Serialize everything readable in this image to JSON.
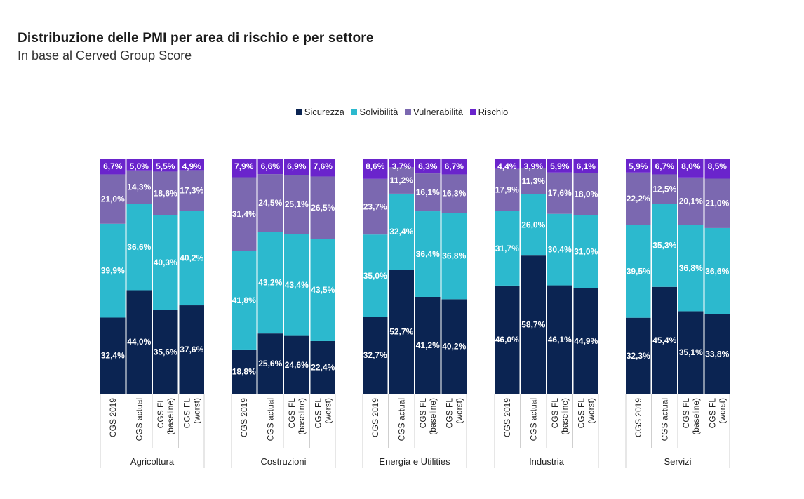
{
  "chart_data": {
    "type": "bar",
    "stacked": true,
    "title": "Distribuzione delle PMI per area di rischio e per settore",
    "subtitle": "In base al Cerved Group Score",
    "legend_position": "top-center",
    "ylim": [
      0,
      100
    ],
    "categories": [
      "CGS 2019",
      "CGS actual",
      "CGS FL (baseline)",
      "CGS FL (worst)"
    ],
    "category_lines": [
      [
        "CGS 2019"
      ],
      [
        "CGS actual"
      ],
      [
        "CGS FL",
        "(baseline)"
      ],
      [
        "CGS FL",
        "(worst)"
      ]
    ],
    "groups": [
      "Agricoltura",
      "Costruzioni",
      "Energia e Utilities",
      "Industria",
      "Servizi"
    ],
    "series": [
      {
        "name": "Sicurezza",
        "color": "#0b2452",
        "values": [
          [
            32.4,
            44.0,
            35.6,
            37.6
          ],
          [
            18.8,
            25.6,
            24.6,
            22.4
          ],
          [
            32.7,
            52.7,
            41.2,
            40.2
          ],
          [
            46.0,
            58.7,
            46.1,
            44.9
          ],
          [
            32.3,
            45.4,
            35.1,
            33.8
          ]
        ],
        "labels": [
          [
            "32,4%",
            "44,0%",
            "35,6%",
            "37,6%"
          ],
          [
            "18,8%",
            "25,6%",
            "24,6%",
            "22,4%"
          ],
          [
            "32,7%",
            "52,7%",
            "41,2%",
            "40,2%"
          ],
          [
            "46,0%",
            "58,7%",
            "46,1%",
            "44,9%"
          ],
          [
            "32,3%",
            "45,4%",
            "35,1%",
            "33,8%"
          ]
        ]
      },
      {
        "name": "Solvibilità",
        "color": "#2cb9ce",
        "values": [
          [
            39.9,
            36.6,
            40.3,
            40.2
          ],
          [
            41.8,
            43.2,
            43.4,
            43.5
          ],
          [
            35.0,
            32.4,
            36.4,
            36.8
          ],
          [
            31.7,
            26.0,
            30.4,
            31.0
          ],
          [
            39.5,
            35.3,
            36.8,
            36.6
          ]
        ],
        "labels": [
          [
            "39,9%",
            "36,6%",
            "40,3%",
            "40,2%"
          ],
          [
            "41,8%",
            "43,2%",
            "43,4%",
            "43,5%"
          ],
          [
            "35,0%",
            "32,4%",
            "36,4%",
            "36,8%"
          ],
          [
            "31,7%",
            "26,0%",
            "30,4%",
            "31,0%"
          ],
          [
            "39,5%",
            "35,3%",
            "36,8%",
            "36,6%"
          ]
        ]
      },
      {
        "name": "Vulnerabilità",
        "color": "#7b68b0",
        "values": [
          [
            21.0,
            14.3,
            18.6,
            17.3
          ],
          [
            31.4,
            24.5,
            25.1,
            26.5
          ],
          [
            23.7,
            11.2,
            16.1,
            16.3
          ],
          [
            17.9,
            11.3,
            17.6,
            18.0
          ],
          [
            22.2,
            12.5,
            20.1,
            21.0
          ]
        ],
        "labels": [
          [
            "21,0%",
            "14,3%",
            "18,6%",
            "17,3%"
          ],
          [
            "31,4%",
            "24,5%",
            "25,1%",
            "26,5%"
          ],
          [
            "23,7%",
            "11,2%",
            "16,1%",
            "16,3%"
          ],
          [
            "17,9%",
            "11,3%",
            "17,6%",
            "18,0%"
          ],
          [
            "22,2%",
            "12,5%",
            "20,1%",
            "21,0%"
          ]
        ]
      },
      {
        "name": "Rischio",
        "color": "#6a24cc",
        "values": [
          [
            6.7,
            5.0,
            5.5,
            4.9
          ],
          [
            7.9,
            6.6,
            6.9,
            7.6
          ],
          [
            8.6,
            3.7,
            6.3,
            6.7
          ],
          [
            4.4,
            3.9,
            5.9,
            6.1
          ],
          [
            5.9,
            6.7,
            8.0,
            8.5
          ]
        ],
        "labels": [
          [
            "6,7%",
            "5,0%",
            "5,5%",
            "4,9%"
          ],
          [
            "7,9%",
            "6,6%",
            "6,9%",
            "7,6%"
          ],
          [
            "8,6%",
            "3,7%",
            "6,3%",
            "6,7%"
          ],
          [
            "4,4%",
            "3,9%",
            "5,9%",
            "6,1%"
          ],
          [
            "5,9%",
            "6,7%",
            "8,0%",
            "8,5%"
          ]
        ]
      }
    ]
  }
}
